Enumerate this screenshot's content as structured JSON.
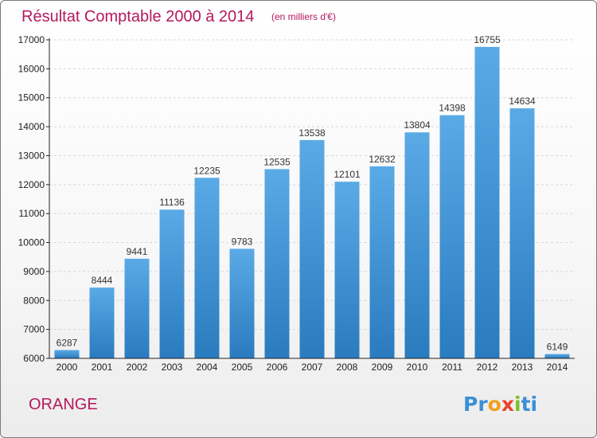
{
  "header": {
    "title": "Résultat Comptable 2000 à 2014",
    "subtitle": "(en milliers d'€)"
  },
  "footer": {
    "commune": "ORANGE",
    "logo_letters": [
      "P",
      "r",
      "o",
      "x",
      "i",
      "t",
      "i"
    ]
  },
  "colors": {
    "title": "#b5195b",
    "bar_top": "#5aaae6",
    "bar_bottom": "#2a7bbf",
    "logo": [
      "#3a8fd6",
      "#3a8fd6",
      "#f0a020",
      "#e8452c",
      "#7cbf2a",
      "#3a8fd6",
      "#3a8fd6"
    ]
  },
  "chart_data": {
    "type": "bar",
    "title": "Résultat Comptable 2000 à 2014",
    "subtitle": "(en milliers d'€)",
    "categories": [
      "2000",
      "2001",
      "2002",
      "2003",
      "2004",
      "2005",
      "2006",
      "2007",
      "2008",
      "2009",
      "2010",
      "2011",
      "2012",
      "2013",
      "2014"
    ],
    "values": [
      6287,
      8444,
      9441,
      11136,
      12235,
      9783,
      12535,
      13538,
      12101,
      12632,
      13804,
      14398,
      16755,
      14634,
      6149
    ],
    "ylim": [
      6000,
      17000
    ],
    "yticks": [
      6000,
      7000,
      8000,
      9000,
      10000,
      11000,
      12000,
      13000,
      14000,
      15000,
      16000,
      17000
    ],
    "grid": true,
    "legend": "none"
  }
}
